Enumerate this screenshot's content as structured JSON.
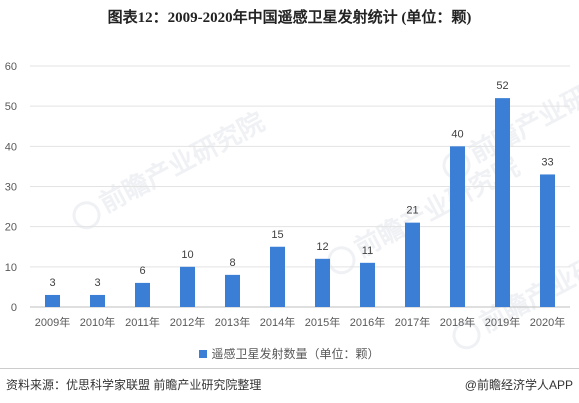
{
  "title": "图表12：2009-2020年中国遥感卫星发射统计 (单位：颗)",
  "watermark": "前瞻产业研究院",
  "colors": {
    "bar": "#3a7fd5",
    "grid": "#e3e3e3",
    "axis": "#bfbfbf"
  },
  "chart_data": {
    "type": "bar",
    "categories": [
      "2009年",
      "2010年",
      "2011年",
      "2012年",
      "2013年",
      "2014年",
      "2015年",
      "2016年",
      "2017年",
      "2018年",
      "2019年",
      "2020年"
    ],
    "series": [
      {
        "name": "遥感卫星发射数量（单位：颗）",
        "values": [
          3,
          3,
          6,
          10,
          8,
          15,
          12,
          11,
          21,
          40,
          52,
          33
        ]
      }
    ],
    "ylim": [
      0,
      60
    ],
    "yticks": [
      0,
      10,
      20,
      30,
      40,
      50,
      60
    ],
    "grid": true,
    "legend": "bottom",
    "xlabel": "",
    "ylabel": ""
  },
  "footer": {
    "source": "资料来源：优思科学家联盟 前瞻产业研究院整理",
    "credit": "@前瞻经济学人APP"
  }
}
